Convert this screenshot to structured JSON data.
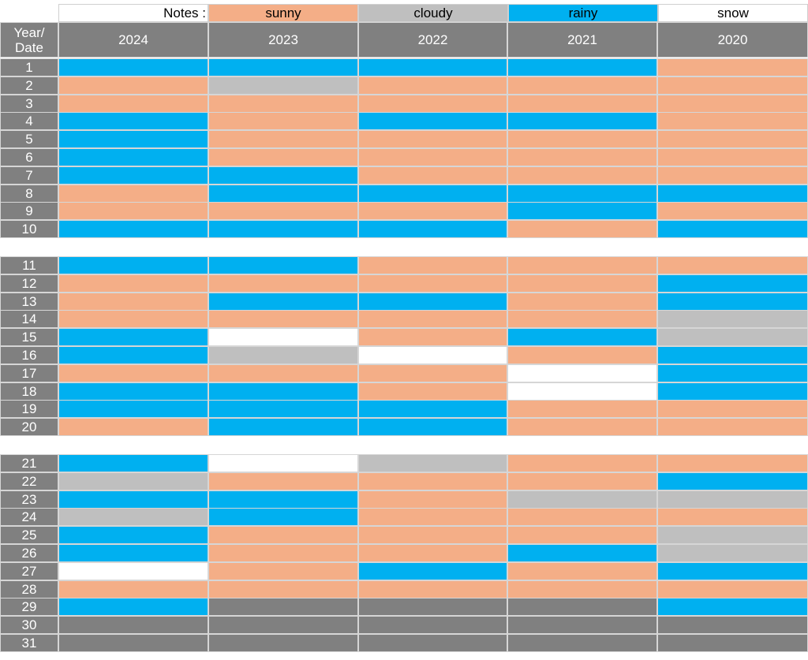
{
  "legend": {
    "notes_label": "Notes :",
    "items": [
      {
        "key": "sunny",
        "label": "sunny",
        "color": "#f4ae87"
      },
      {
        "key": "cloudy",
        "label": "cloudy",
        "color": "#bfbfbf"
      },
      {
        "key": "rainy",
        "label": "rainy",
        "color": "#00b0f0"
      },
      {
        "key": "snow",
        "label": "snow",
        "color": "#ffffff"
      }
    ]
  },
  "colors": {
    "S": "#f4ae87",
    "C": "#bfbfbf",
    "R": "#00b0f0",
    "W": "#ffffff",
    "N": "#808080",
    "header_bg": "#808080",
    "header_text": "#ffffff"
  },
  "header": {
    "corner_line1": "Year/",
    "corner_line2": "Date",
    "years": [
      "2024",
      "2023",
      "2022",
      "2021",
      "2020"
    ]
  },
  "rows": [
    {
      "day": "1",
      "weather": [
        "R",
        "R",
        "R",
        "R",
        "S"
      ]
    },
    {
      "day": "2",
      "weather": [
        "S",
        "C",
        "S",
        "S",
        "S"
      ]
    },
    {
      "day": "3",
      "weather": [
        "S",
        "S",
        "S",
        "S",
        "S"
      ]
    },
    {
      "day": "4",
      "weather": [
        "R",
        "S",
        "R",
        "R",
        "S"
      ]
    },
    {
      "day": "5",
      "weather": [
        "R",
        "S",
        "S",
        "S",
        "S"
      ]
    },
    {
      "day": "6",
      "weather": [
        "R",
        "S",
        "S",
        "S",
        "S"
      ]
    },
    {
      "day": "7",
      "weather": [
        "R",
        "R",
        "S",
        "S",
        "S"
      ]
    },
    {
      "day": "8",
      "weather": [
        "S",
        "R",
        "R",
        "R",
        "R"
      ]
    },
    {
      "day": "9",
      "weather": [
        "S",
        "S",
        "S",
        "R",
        "S"
      ]
    },
    {
      "day": "10",
      "weather": [
        "R",
        "R",
        "R",
        "S",
        "R"
      ]
    },
    {
      "day": "11",
      "weather": [
        "R",
        "R",
        "S",
        "S",
        "S"
      ]
    },
    {
      "day": "12",
      "weather": [
        "S",
        "S",
        "S",
        "S",
        "R"
      ]
    },
    {
      "day": "13",
      "weather": [
        "S",
        "R",
        "R",
        "S",
        "R"
      ]
    },
    {
      "day": "14",
      "weather": [
        "S",
        "S",
        "S",
        "S",
        "C"
      ]
    },
    {
      "day": "15",
      "weather": [
        "R",
        "W",
        "S",
        "R",
        "C"
      ]
    },
    {
      "day": "16",
      "weather": [
        "R",
        "C",
        "W",
        "S",
        "R"
      ]
    },
    {
      "day": "17",
      "weather": [
        "S",
        "S",
        "S",
        "W",
        "R"
      ]
    },
    {
      "day": "18",
      "weather": [
        "R",
        "R",
        "S",
        "W",
        "R"
      ]
    },
    {
      "day": "19",
      "weather": [
        "R",
        "R",
        "R",
        "S",
        "S"
      ]
    },
    {
      "day": "20",
      "weather": [
        "S",
        "R",
        "R",
        "S",
        "S"
      ]
    },
    {
      "day": "21",
      "weather": [
        "R",
        "W",
        "C",
        "S",
        "S"
      ]
    },
    {
      "day": "22",
      "weather": [
        "C",
        "S",
        "S",
        "S",
        "R"
      ]
    },
    {
      "day": "23",
      "weather": [
        "R",
        "R",
        "S",
        "C",
        "C"
      ]
    },
    {
      "day": "24",
      "weather": [
        "C",
        "R",
        "S",
        "S",
        "S"
      ]
    },
    {
      "day": "25",
      "weather": [
        "R",
        "S",
        "S",
        "S",
        "C"
      ]
    },
    {
      "day": "26",
      "weather": [
        "R",
        "S",
        "S",
        "R",
        "C"
      ]
    },
    {
      "day": "27",
      "weather": [
        "W",
        "S",
        "R",
        "S",
        "R"
      ]
    },
    {
      "day": "28",
      "weather": [
        "S",
        "S",
        "S",
        "S",
        "S"
      ]
    },
    {
      "day": "29",
      "weather": [
        "R",
        "N",
        "N",
        "N",
        "R"
      ]
    },
    {
      "day": "30",
      "weather": [
        "N",
        "N",
        "N",
        "N",
        "N"
      ]
    },
    {
      "day": "31",
      "weather": [
        "N",
        "N",
        "N",
        "N",
        "N"
      ]
    }
  ]
}
